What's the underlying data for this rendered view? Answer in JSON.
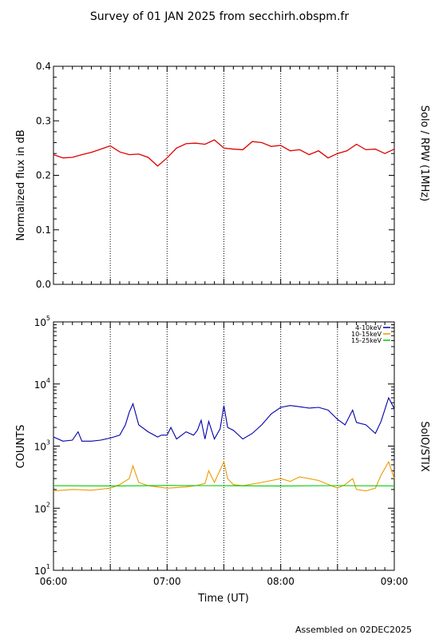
{
  "title": "Survey of 01 JAN 2025 from secchirh.obspm.fr",
  "footer": "Assembled on 02DEC2025",
  "colors": {
    "rpw": "#dd0000",
    "stix_4_10": "#0000aa",
    "stix_10_15": "#ee9900",
    "stix_15_25": "#00cc00",
    "frame": "#000000"
  },
  "chart_data": [
    {
      "type": "line",
      "id": "rpw",
      "ylabel": "Normalized flux in dB",
      "right_label": "Solo / RPW (1MHz)",
      "xlim": [
        "06:00",
        "09:00"
      ],
      "ylim": [
        0.0,
        0.4
      ],
      "y_ticks": [
        "0.0",
        "0.1",
        "0.2",
        "0.3",
        "0.4"
      ],
      "vlines": [
        "06:30",
        "07:00",
        "07:30",
        "08:00",
        "08:30"
      ],
      "series": [
        {
          "color": "#dd0000",
          "x": [
            "06:00",
            "06:05",
            "06:10",
            "06:15",
            "06:20",
            "06:25",
            "06:30",
            "06:35",
            "06:40",
            "06:45",
            "06:50",
            "06:55",
            "07:00",
            "07:05",
            "07:10",
            "07:15",
            "07:20",
            "07:25",
            "07:30",
            "07:35",
            "07:40",
            "07:45",
            "07:50",
            "07:55",
            "08:00",
            "08:05",
            "08:10",
            "08:15",
            "08:20",
            "08:25",
            "08:30",
            "08:35",
            "08:40",
            "08:45",
            "08:50",
            "08:55",
            "09:00"
          ],
          "values": [
            0.238,
            0.232,
            0.233,
            0.238,
            0.242,
            0.248,
            0.254,
            0.243,
            0.238,
            0.239,
            0.233,
            0.217,
            0.232,
            0.25,
            0.258,
            0.259,
            0.257,
            0.265,
            0.25,
            0.248,
            0.247,
            0.262,
            0.26,
            0.253,
            0.255,
            0.245,
            0.247,
            0.238,
            0.245,
            0.232,
            0.24,
            0.245,
            0.257,
            0.247,
            0.248,
            0.24,
            0.248
          ]
        }
      ]
    },
    {
      "type": "line",
      "id": "stix",
      "xlabel": "Time (UT)",
      "ylabel": "COUNTS",
      "right_label": "SolO/STIX",
      "y_scale": "log",
      "ylim": [
        10,
        100000
      ],
      "y_tick_bases": [
        "10",
        "10",
        "10",
        "10",
        "10"
      ],
      "y_tick_exps": [
        "1",
        "2",
        "3",
        "4",
        "5"
      ],
      "xlim": [
        "06:00",
        "09:00"
      ],
      "x_ticks": [
        "06:00",
        "07:00",
        "08:00",
        "09:00"
      ],
      "vlines": [
        "06:30",
        "07:00",
        "07:30",
        "08:00",
        "08:30"
      ],
      "series": [
        {
          "name": "4-10keV",
          "color": "#0000aa",
          "x": [
            "06:00",
            "06:05",
            "06:10",
            "06:13",
            "06:15",
            "06:20",
            "06:25",
            "06:30",
            "06:35",
            "06:38",
            "06:40",
            "06:42",
            "06:45",
            "06:50",
            "06:55",
            "06:57",
            "07:00",
            "07:02",
            "07:05",
            "07:10",
            "07:14",
            "07:16",
            "07:18",
            "07:20",
            "07:22",
            "07:25",
            "07:28",
            "07:30",
            "07:32",
            "07:35",
            "07:40",
            "07:45",
            "07:50",
            "07:55",
            "08:00",
            "08:05",
            "08:10",
            "08:15",
            "08:20",
            "08:25",
            "08:30",
            "08:34",
            "08:38",
            "08:40",
            "08:45",
            "08:50",
            "08:53",
            "08:57",
            "09:00"
          ],
          "values": [
            1400,
            1200,
            1250,
            1700,
            1200,
            1200,
            1250,
            1350,
            1500,
            2200,
            3500,
            4800,
            2200,
            1700,
            1400,
            1500,
            1500,
            2000,
            1300,
            1700,
            1500,
            1800,
            2600,
            1300,
            2500,
            1300,
            1900,
            4500,
            2000,
            1800,
            1300,
            1600,
            2200,
            3300,
            4200,
            4500,
            4300,
            4100,
            4200,
            3800,
            2700,
            2200,
            3800,
            2400,
            2200,
            1600,
            2500,
            6000,
            4000
          ]
        },
        {
          "name": "10-15keV",
          "color": "#ee9900",
          "x": [
            "06:00",
            "06:10",
            "06:20",
            "06:30",
            "06:35",
            "06:40",
            "06:42",
            "06:45",
            "06:50",
            "07:00",
            "07:05",
            "07:10",
            "07:15",
            "07:20",
            "07:22",
            "07:25",
            "07:30",
            "07:32",
            "07:35",
            "07:40",
            "07:50",
            "08:00",
            "08:05",
            "08:10",
            "08:20",
            "08:30",
            "08:34",
            "08:38",
            "08:40",
            "08:45",
            "08:50",
            "08:53",
            "08:57",
            "09:00"
          ],
          "values": [
            190,
            200,
            195,
            210,
            240,
            300,
            480,
            260,
            230,
            210,
            215,
            220,
            230,
            250,
            400,
            260,
            560,
            300,
            240,
            230,
            260,
            300,
            270,
            320,
            280,
            210,
            240,
            300,
            200,
            190,
            210,
            340,
            560,
            300
          ]
        },
        {
          "name": "15-25keV",
          "color": "#00cc00",
          "x": [
            "06:00",
            "06:30",
            "07:00",
            "07:30",
            "08:00",
            "08:30",
            "09:00"
          ],
          "values": [
            230,
            228,
            232,
            230,
            228,
            231,
            229
          ]
        }
      ]
    }
  ]
}
